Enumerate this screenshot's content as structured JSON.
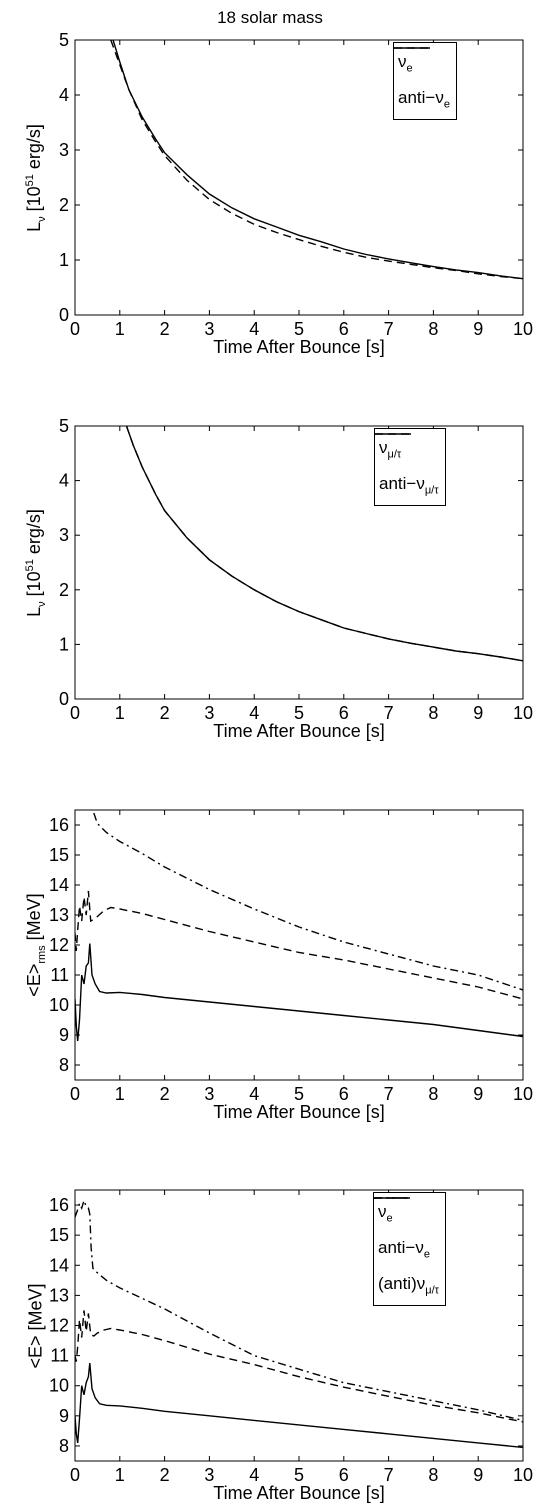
{
  "figure_title": "18 solar mass",
  "chart_data": [
    {
      "type": "line",
      "ylabel": {
        "main": "L",
        "sub": "ν",
        "after": " [10",
        "sup": "51",
        "tail": " erg/s]"
      },
      "xlabel": "Time After Bounce [s]",
      "xlim": [
        0,
        10
      ],
      "ylim": [
        0,
        5
      ],
      "xticks": [
        0,
        1,
        2,
        3,
        4,
        5,
        6,
        7,
        8,
        9,
        10
      ],
      "yticks": [
        0,
        1,
        2,
        3,
        4,
        5
      ],
      "legend_position": "top-right",
      "series": [
        {
          "name": "ν",
          "name_sub": "e",
          "style": "solid",
          "x": [
            0.85,
            1,
            1.2,
            1.5,
            1.8,
            2,
            2.5,
            3,
            3.5,
            4,
            4.5,
            5,
            5.5,
            6,
            6.5,
            7,
            7.5,
            8,
            8.5,
            9,
            9.5,
            10
          ],
          "y": [
            5.0,
            4.6,
            4.1,
            3.6,
            3.2,
            2.95,
            2.55,
            2.2,
            1.95,
            1.75,
            1.6,
            1.45,
            1.33,
            1.2,
            1.1,
            1.02,
            0.95,
            0.88,
            0.82,
            0.77,
            0.71,
            0.66
          ]
        },
        {
          "name": "anti−ν",
          "name_sub": "e",
          "style": "dashed",
          "x": [
            0.8,
            1,
            1.2,
            1.5,
            1.8,
            2,
            2.5,
            3,
            3.5,
            4,
            4.5,
            5,
            5.5,
            6,
            6.5,
            7,
            7.5,
            8,
            8.5,
            9,
            9.5,
            10
          ],
          "y": [
            5.0,
            4.55,
            4.1,
            3.55,
            3.15,
            2.9,
            2.45,
            2.1,
            1.85,
            1.65,
            1.5,
            1.37,
            1.25,
            1.14,
            1.05,
            0.98,
            0.92,
            0.86,
            0.81,
            0.75,
            0.7,
            0.66
          ]
        }
      ]
    },
    {
      "type": "line",
      "ylabel": {
        "main": "L",
        "sub": "ν",
        "after": " [10",
        "sup": "51",
        "tail": " erg/s]"
      },
      "xlabel": "Time After Bounce [s]",
      "xlim": [
        0,
        10
      ],
      "ylim": [
        0,
        5
      ],
      "xticks": [
        0,
        1,
        2,
        3,
        4,
        5,
        6,
        7,
        8,
        9,
        10
      ],
      "yticks": [
        0,
        1,
        2,
        3,
        4,
        5
      ],
      "legend_position": "top-right",
      "series": [
        {
          "name": "ν",
          "name_sub": "μ/τ",
          "style": "solid",
          "x": [
            1.15,
            1.3,
            1.5,
            1.8,
            2,
            2.5,
            3,
            3.5,
            4,
            4.5,
            5,
            5.5,
            6,
            6.5,
            7,
            7.5,
            8,
            8.5,
            9,
            9.5,
            10
          ],
          "y": [
            5.0,
            4.65,
            4.25,
            3.75,
            3.45,
            2.95,
            2.55,
            2.25,
            2.0,
            1.78,
            1.6,
            1.45,
            1.3,
            1.2,
            1.1,
            1.02,
            0.95,
            0.88,
            0.83,
            0.77,
            0.7
          ]
        },
        {
          "name": "anti−ν",
          "name_sub": "μ/τ",
          "style": "dashed",
          "x": [
            1.15,
            1.3,
            1.5,
            1.8,
            2,
            2.5,
            3,
            3.5,
            4,
            4.5,
            5,
            5.5,
            6,
            6.5,
            7,
            7.5,
            8,
            8.5,
            9,
            9.5,
            10
          ],
          "y": [
            5.0,
            4.65,
            4.25,
            3.75,
            3.45,
            2.95,
            2.55,
            2.25,
            2.0,
            1.78,
            1.6,
            1.45,
            1.3,
            1.2,
            1.1,
            1.02,
            0.95,
            0.88,
            0.83,
            0.77,
            0.7
          ]
        }
      ]
    },
    {
      "type": "line",
      "ylabel": {
        "main": "<E>",
        "sub": "rms",
        "after": " [MeV]",
        "sup": "",
        "tail": ""
      },
      "xlabel": "Time After Bounce [s]",
      "xlim": [
        0,
        10
      ],
      "ylim": [
        7.5,
        16.5
      ],
      "xticks": [
        0,
        1,
        2,
        3,
        4,
        5,
        6,
        7,
        8,
        9,
        10
      ],
      "yticks": [
        8,
        9,
        10,
        11,
        12,
        13,
        14,
        15,
        16
      ],
      "legend_position": "none",
      "series": [
        {
          "style": "solid",
          "x": [
            0,
            0.03,
            0.06,
            0.1,
            0.15,
            0.2,
            0.25,
            0.3,
            0.33,
            0.38,
            0.45,
            0.55,
            0.7,
            1,
            1.5,
            2,
            3,
            4,
            5,
            6,
            7,
            8,
            9,
            10
          ],
          "y": [
            10.2,
            9.3,
            8.8,
            9.5,
            11.0,
            10.7,
            11.3,
            11.4,
            12.05,
            11.0,
            10.7,
            10.45,
            10.4,
            10.42,
            10.35,
            10.25,
            10.1,
            9.95,
            9.8,
            9.65,
            9.5,
            9.35,
            9.15,
            8.95
          ]
        },
        {
          "style": "dashed",
          "x": [
            0,
            0.03,
            0.06,
            0.1,
            0.15,
            0.2,
            0.25,
            0.3,
            0.35,
            0.42,
            0.5,
            0.65,
            0.8,
            1,
            1.5,
            2,
            3,
            4,
            5,
            6,
            7,
            8,
            9,
            10
          ],
          "y": [
            12.4,
            11.8,
            12.5,
            13.3,
            12.8,
            13.6,
            13.0,
            13.8,
            12.8,
            12.85,
            12.95,
            13.15,
            13.25,
            13.2,
            13.05,
            12.85,
            12.45,
            12.1,
            11.75,
            11.5,
            11.2,
            10.9,
            10.6,
            10.2
          ]
        },
        {
          "style": "dashdot",
          "x": [
            0.42,
            0.5,
            0.7,
            1,
            1.5,
            2,
            3,
            4,
            5,
            6,
            7,
            8,
            9,
            10
          ],
          "y": [
            16.4,
            16.05,
            15.75,
            15.45,
            15.05,
            14.6,
            13.85,
            13.2,
            12.6,
            12.1,
            11.7,
            11.3,
            11.0,
            10.5
          ]
        }
      ]
    },
    {
      "type": "line",
      "ylabel": {
        "main": "<E> [MeV]",
        "sub": "",
        "after": "",
        "sup": "",
        "tail": ""
      },
      "xlabel": "Time After Bounce [s]",
      "xlim": [
        0,
        10
      ],
      "ylim": [
        7.5,
        16.5
      ],
      "xticks": [
        0,
        1,
        2,
        3,
        4,
        5,
        6,
        7,
        8,
        9,
        10
      ],
      "yticks": [
        8,
        9,
        10,
        11,
        12,
        13,
        14,
        15,
        16
      ],
      "legend_position": "top-right",
      "series": [
        {
          "name": "ν",
          "name_sub": "e",
          "style": "solid",
          "x": [
            0,
            0.03,
            0.06,
            0.1,
            0.15,
            0.2,
            0.25,
            0.3,
            0.33,
            0.38,
            0.45,
            0.55,
            0.7,
            1,
            1.5,
            2,
            3,
            4,
            5,
            6,
            7,
            8,
            9,
            10
          ],
          "y": [
            9.0,
            8.4,
            8.1,
            8.9,
            10.0,
            9.7,
            10.1,
            10.3,
            10.75,
            9.9,
            9.6,
            9.4,
            9.35,
            9.33,
            9.25,
            9.15,
            9.0,
            8.85,
            8.7,
            8.55,
            8.4,
            8.25,
            8.1,
            7.95
          ]
        },
        {
          "name": "anti−ν",
          "name_sub": "e",
          "style": "dashed",
          "x": [
            0,
            0.03,
            0.06,
            0.1,
            0.15,
            0.2,
            0.25,
            0.3,
            0.35,
            0.42,
            0.5,
            0.65,
            0.8,
            1,
            1.5,
            2,
            3,
            4,
            5,
            6,
            7,
            8,
            9,
            10
          ],
          "y": [
            11.0,
            10.8,
            11.3,
            12.2,
            11.6,
            12.5,
            11.8,
            12.4,
            11.7,
            11.65,
            11.75,
            11.85,
            11.9,
            11.85,
            11.7,
            11.5,
            11.05,
            10.7,
            10.3,
            9.95,
            9.65,
            9.35,
            9.1,
            8.8
          ]
        },
        {
          "name": "(anti)ν",
          "name_sub": "μ/τ",
          "style": "dashdot",
          "x": [
            0,
            0.05,
            0.1,
            0.15,
            0.2,
            0.25,
            0.3,
            0.33,
            0.36,
            0.4,
            0.5,
            0.7,
            1,
            1.5,
            2,
            3,
            4,
            5,
            6,
            7,
            8,
            9,
            10
          ],
          "y": [
            15.6,
            15.8,
            16.05,
            15.9,
            16.15,
            15.95,
            15.9,
            15.7,
            14.6,
            13.9,
            13.75,
            13.5,
            13.25,
            12.9,
            12.55,
            11.75,
            11.0,
            10.55,
            10.1,
            9.8,
            9.5,
            9.2,
            8.85
          ]
        }
      ]
    }
  ]
}
